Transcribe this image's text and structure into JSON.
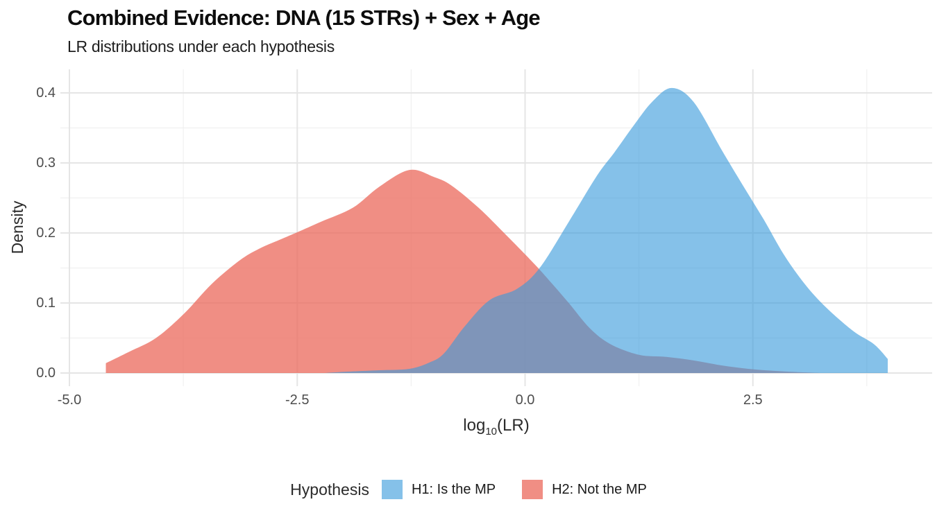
{
  "header": {
    "title": "Combined Evidence: DNA (15 STRs) + Sex + Age",
    "subtitle": "LR distributions under each hypothesis"
  },
  "legend": {
    "title": "Hypothesis",
    "items": [
      {
        "label": "H1: Is the MP",
        "swatch": "rgba(55,153,219,0.61)"
      },
      {
        "label": "H2: Not the MP",
        "swatch": "rgba(236,110,97,0.78)"
      }
    ]
  },
  "chart_data": {
    "type": "area",
    "title": "Combined Evidence: DNA (15 STRs) + Sex + Age",
    "subtitle": "LR distributions under each hypothesis",
    "xlabel": {
      "pre": "log",
      "sub": "10",
      "post": "(LR)"
    },
    "ylabel": "Density",
    "xlim": [
      -5.1,
      4.45
    ],
    "ylim": [
      -0.018,
      0.434
    ],
    "grid": true,
    "legend_position": "bottom",
    "legend_title": "Hypothesis",
    "x_ticks": {
      "values": [
        -5.0,
        -2.5,
        0.0,
        2.5
      ],
      "labels": [
        "-5.0",
        "-2.5",
        "0.0",
        "2.5"
      ],
      "minor": [
        -3.75,
        -1.25,
        1.25,
        3.75
      ]
    },
    "y_ticks": {
      "values": [
        0.0,
        0.1,
        0.2,
        0.3,
        0.4
      ],
      "labels": [
        "0.0",
        "0.1",
        "0.2",
        "0.3",
        "0.4"
      ],
      "minor": [
        0.05,
        0.15,
        0.25,
        0.35
      ]
    },
    "series": [
      {
        "name": "H1: Is the MP",
        "hypothesis": "H1",
        "fill": "rgba(55,153,219,0.61)",
        "flat_color": "#85C1E9",
        "layer": 2,
        "peak": {
          "x": 1.61,
          "density": 0.407
        },
        "points": [
          [
            -2.2,
            0.0
          ],
          [
            -1.95,
            0.002
          ],
          [
            -1.6,
            0.004
          ],
          [
            -1.27,
            0.006
          ],
          [
            -1.05,
            0.015
          ],
          [
            -0.89,
            0.028
          ],
          [
            -0.66,
            0.067
          ],
          [
            -0.39,
            0.104
          ],
          [
            -0.09,
            0.12
          ],
          [
            0.16,
            0.15
          ],
          [
            0.48,
            0.216
          ],
          [
            0.79,
            0.282
          ],
          [
            0.98,
            0.315
          ],
          [
            1.2,
            0.355
          ],
          [
            1.4,
            0.388
          ],
          [
            1.61,
            0.407
          ],
          [
            1.85,
            0.387
          ],
          [
            2.16,
            0.318
          ],
          [
            2.39,
            0.268
          ],
          [
            2.62,
            0.219
          ],
          [
            2.84,
            0.169
          ],
          [
            3.07,
            0.127
          ],
          [
            3.3,
            0.094
          ],
          [
            3.6,
            0.06
          ],
          [
            3.83,
            0.041
          ],
          [
            3.98,
            0.02
          ]
        ]
      },
      {
        "name": "H2: Not the MP",
        "hypothesis": "H2",
        "fill": "rgba(236,110,97,0.78)",
        "flat_color": "#F08E84",
        "layer": 1,
        "peak": {
          "x": -1.27,
          "density": 0.29
        },
        "points": [
          [
            -4.6,
            0.014
          ],
          [
            -4.35,
            0.03
          ],
          [
            -4.05,
            0.05
          ],
          [
            -3.74,
            0.085
          ],
          [
            -3.44,
            0.127
          ],
          [
            -3.13,
            0.161
          ],
          [
            -2.91,
            0.178
          ],
          [
            -2.68,
            0.191
          ],
          [
            -2.5,
            0.201
          ],
          [
            -2.24,
            0.216
          ],
          [
            -1.89,
            0.236
          ],
          [
            -1.6,
            0.266
          ],
          [
            -1.27,
            0.29
          ],
          [
            -1.0,
            0.28
          ],
          [
            -0.81,
            0.268
          ],
          [
            -0.51,
            0.236
          ],
          [
            -0.2,
            0.196
          ],
          [
            0.1,
            0.156
          ],
          [
            0.28,
            0.13
          ],
          [
            0.48,
            0.1
          ],
          [
            0.71,
            0.064
          ],
          [
            0.94,
            0.041
          ],
          [
            1.25,
            0.026
          ],
          [
            1.55,
            0.023
          ],
          [
            1.85,
            0.018
          ],
          [
            2.15,
            0.011
          ],
          [
            2.45,
            0.006
          ],
          [
            2.75,
            0.003
          ],
          [
            3.05,
            0.001
          ],
          [
            3.25,
            0.0
          ]
        ]
      }
    ],
    "colors": {
      "h1_over_white": "#85C1E9",
      "h2_over_white": "#F08E84",
      "overlap": "#7F95B9",
      "grid_major": "#E5E5E5",
      "grid_minor": "#F0F0F0",
      "tick_text": "#4d4d4d",
      "axis_title_text": "#2b2b2b",
      "title_text": "#0d0d0d"
    }
  }
}
